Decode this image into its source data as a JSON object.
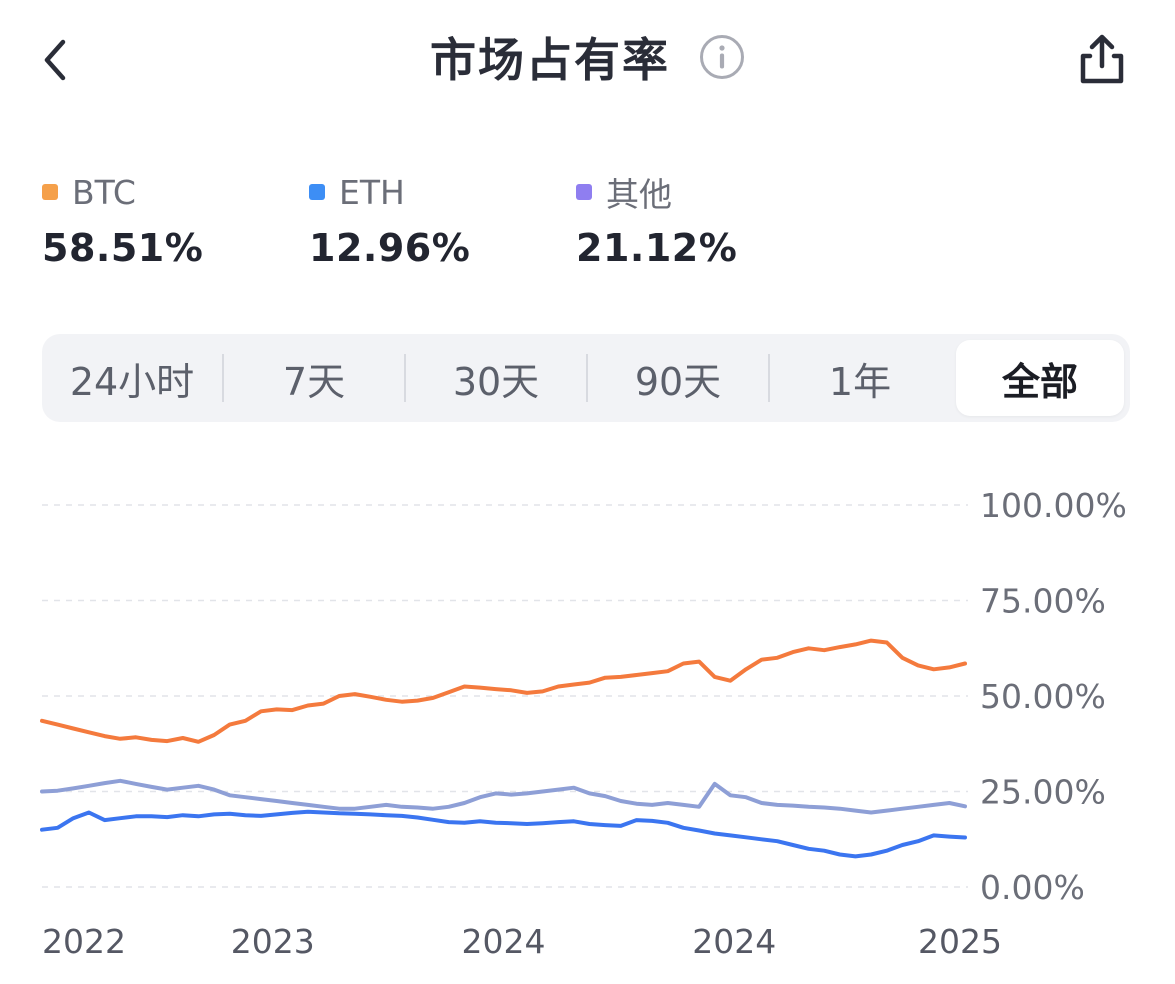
{
  "header": {
    "title": "市场占有率",
    "back_icon": "chevron-left-icon",
    "info_icon": "info-icon",
    "share_icon": "share-icon"
  },
  "legend": [
    {
      "label": "BTC",
      "value": "58.51%",
      "color": "#f5a04a"
    },
    {
      "label": "ETH",
      "value": "12.96%",
      "color": "#3d8ef5"
    },
    {
      "label": "其他",
      "value": "21.12%",
      "color": "#8f7ef0"
    }
  ],
  "tabs": [
    {
      "label": "24小时",
      "active": false
    },
    {
      "label": "7天",
      "active": false
    },
    {
      "label": "30天",
      "active": false
    },
    {
      "label": "90天",
      "active": false
    },
    {
      "label": "1年",
      "active": false
    },
    {
      "label": "全部",
      "active": true
    }
  ],
  "chart_data": {
    "type": "line",
    "ylim": [
      0,
      100
    ],
    "y_ticks": [
      "100.00%",
      "75.00%",
      "50.00%",
      "25.00%",
      "0.00%"
    ],
    "y_tick_values": [
      100,
      75,
      50,
      25,
      0
    ],
    "x_labels": [
      "2022",
      "2023",
      "2024",
      "2024",
      "2025"
    ],
    "x_label_positions": [
      0,
      0.25,
      0.5,
      0.75,
      1
    ],
    "series": [
      {
        "name": "BTC",
        "color": "#f47a3d",
        "values": [
          43.5,
          42.5,
          41.5,
          40.5,
          39.5,
          38.8,
          39.2,
          38.5,
          38.2,
          39.0,
          38.0,
          39.8,
          42.5,
          43.5,
          46.0,
          46.5,
          46.3,
          47.5,
          48.0,
          50.0,
          50.5,
          49.8,
          49.0,
          48.5,
          48.8,
          49.5,
          51.0,
          52.5,
          52.2,
          51.8,
          51.5,
          50.8,
          51.2,
          52.5,
          53.0,
          53.5,
          54.8,
          55.0,
          55.5,
          56.0,
          56.5,
          58.5,
          59.0,
          55.0,
          54.0,
          57.0,
          59.5,
          60.0,
          61.5,
          62.5,
          62.0,
          62.8,
          63.5,
          64.5,
          64.0,
          60.0,
          58.0,
          57.0,
          57.5,
          58.51
        ]
      },
      {
        "name": "ETH",
        "color": "#3b75f0",
        "values": [
          15.0,
          15.5,
          18.0,
          19.5,
          17.5,
          18.0,
          18.5,
          18.5,
          18.3,
          18.8,
          18.5,
          19.0,
          19.2,
          18.8,
          18.6,
          19.0,
          19.4,
          19.7,
          19.5,
          19.3,
          19.2,
          19.0,
          18.8,
          18.6,
          18.2,
          17.6,
          17.0,
          16.8,
          17.2,
          16.8,
          16.7,
          16.5,
          16.7,
          17.0,
          17.2,
          16.5,
          16.2,
          16.0,
          17.5,
          17.3,
          16.8,
          15.5,
          14.8,
          14.0,
          13.5,
          13.0,
          12.5,
          12.0,
          11.0,
          10.0,
          9.5,
          8.5,
          8.0,
          8.5,
          9.5,
          11.0,
          12.0,
          13.5,
          13.2,
          12.96
        ]
      },
      {
        "name": "其他",
        "color": "#8e9fd6",
        "values": [
          25.0,
          25.2,
          25.8,
          26.5,
          27.2,
          27.8,
          27.0,
          26.2,
          25.5,
          26.0,
          26.5,
          25.5,
          24.0,
          23.5,
          23.0,
          22.5,
          22.0,
          21.5,
          21.0,
          20.5,
          20.5,
          21.0,
          21.5,
          21.0,
          20.8,
          20.5,
          21.0,
          22.0,
          23.5,
          24.5,
          24.2,
          24.5,
          25.0,
          25.5,
          26.0,
          24.5,
          23.8,
          22.5,
          21.8,
          21.5,
          22.0,
          21.5,
          21.0,
          27.0,
          24.0,
          23.5,
          22.0,
          21.5,
          21.3,
          21.0,
          20.8,
          20.5,
          20.0,
          19.5,
          20.0,
          20.5,
          21.0,
          21.5,
          22.0,
          21.12
        ]
      }
    ]
  }
}
